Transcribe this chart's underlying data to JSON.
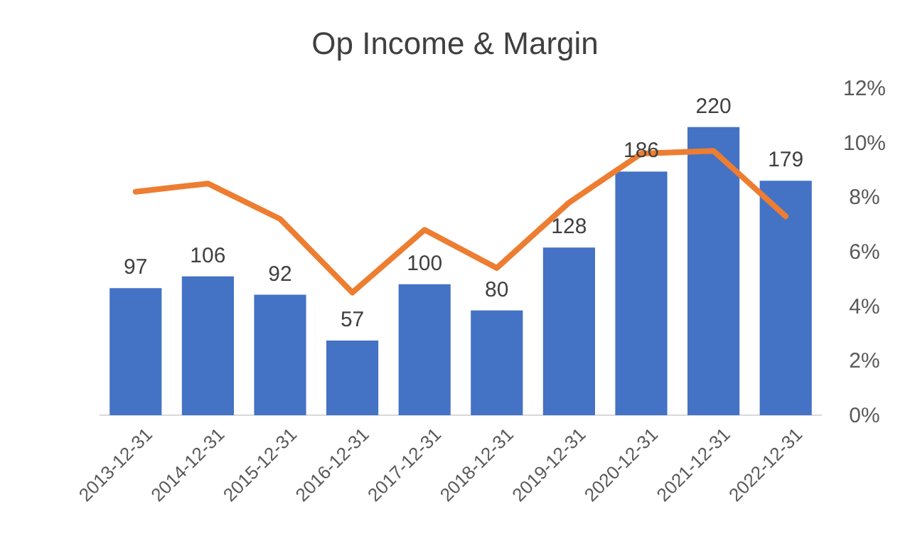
{
  "chart_data": {
    "type": "bar",
    "title": "Op Income & Margin",
    "categories": [
      "2013-12-31",
      "2014-12-31",
      "2015-12-31",
      "2016-12-31",
      "2017-12-31",
      "2018-12-31",
      "2019-12-31",
      "2020-12-31",
      "2021-12-31",
      "2022-12-31"
    ],
    "series": [
      {
        "color": "#4472c4",
        "values": [
          97,
          106,
          92,
          57,
          100,
          80,
          128,
          186,
          220,
          179
        ],
        "value_labels": [
          "97",
          "106",
          "92",
          "57",
          "100",
          "80",
          "128",
          "186",
          "220",
          "179"
        ]
      },
      {
        "type": "line",
        "axis": "y2",
        "color": "#ed7d31",
        "values": [
          8.2,
          8.5,
          7.2,
          4.5,
          6.8,
          5.4,
          7.8,
          9.6,
          9.7,
          7.3
        ]
      }
    ],
    "y2lim": [
      0,
      12
    ],
    "y2ticks": [
      {
        "value": 0,
        "label": "0%"
      },
      {
        "value": 2,
        "label": "2%"
      },
      {
        "value": 4,
        "label": "4%"
      },
      {
        "value": 6,
        "label": "6%"
      },
      {
        "value": 8,
        "label": "8%"
      },
      {
        "value": 10,
        "label": "10%"
      },
      {
        "value": 12,
        "label": "12%"
      }
    ]
  }
}
